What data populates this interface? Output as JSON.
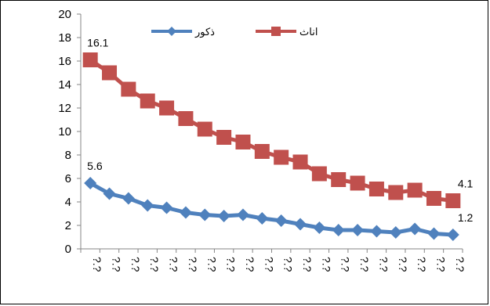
{
  "chart_data": {
    "type": "line",
    "ylim": [
      0,
      20
    ],
    "yticks": [
      "0",
      "2",
      "4",
      "6",
      "8",
      "10",
      "12",
      "14",
      "16",
      "18",
      "20"
    ],
    "categories": [
      "?.?",
      "?.?",
      "?.?",
      "?.?",
      "?.?",
      "?.?",
      "?.?",
      "?.?",
      "?.?",
      "?.?",
      "?.?",
      "?.?",
      "?.?",
      "?.?",
      "?.?",
      "?.?",
      "?.?",
      "?.?",
      "?.?",
      "?.?"
    ],
    "grid": false,
    "legend_position": "top",
    "series": [
      {
        "name": "ذكور",
        "color": "#4F81BD",
        "marker": "diamond",
        "values": [
          5.6,
          4.7,
          4.3,
          3.7,
          3.5,
          3.1,
          2.9,
          2.8,
          2.9,
          2.6,
          2.4,
          2.1,
          1.8,
          1.6,
          1.6,
          1.5,
          1.4,
          1.7,
          1.3,
          1.2
        ],
        "labels": [
          {
            "index": 0,
            "text": "5.6"
          },
          {
            "index": 19,
            "text": "1.2"
          }
        ]
      },
      {
        "name": "اناث",
        "color": "#C0504D",
        "marker": "square",
        "values": [
          16.1,
          15.0,
          13.6,
          12.6,
          12.0,
          11.1,
          10.2,
          9.5,
          9.1,
          8.3,
          7.8,
          7.4,
          6.4,
          5.9,
          5.6,
          5.1,
          4.8,
          5.0,
          4.3,
          4.1
        ],
        "labels": [
          {
            "index": 0,
            "text": "16.1"
          },
          {
            "index": 19,
            "text": "4.1"
          }
        ]
      }
    ]
  }
}
